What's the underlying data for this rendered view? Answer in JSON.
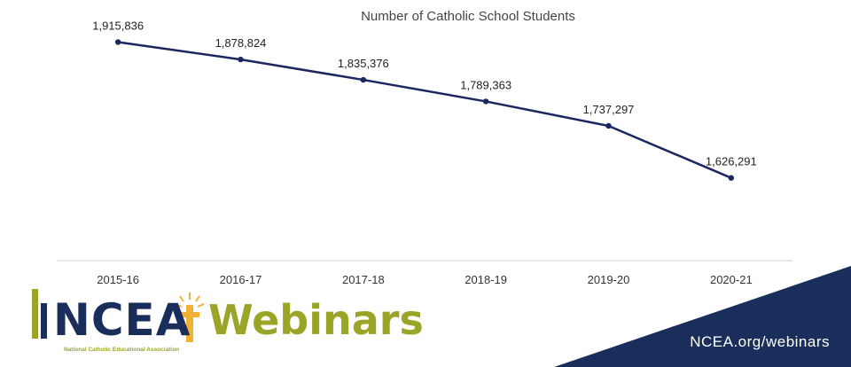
{
  "chart_data": {
    "type": "line",
    "title": "Number of Catholic School Students",
    "categories": [
      "2015-16",
      "2016-17",
      "2017-18",
      "2018-19",
      "2019-20",
      "2020-21"
    ],
    "series": [
      {
        "values": [
          1915836,
          1878824,
          1835376,
          1789363,
          1737297,
          1626291
        ],
        "labels": [
          "1,915,836",
          "1,878,824",
          "1,835,376",
          "1,789,363",
          "1,737,297",
          "1,626,291"
        ]
      }
    ],
    "xlabel": "",
    "ylabel": "",
    "ylim": [
      1450000,
      1930000
    ],
    "grid": false,
    "line_color": "#1a2760"
  },
  "branding": {
    "ncea": "NCEA",
    "webinars": "Webinars",
    "org_name": "National Catholic Educational Association",
    "url": "NCEA.org/webinars",
    "navy": "#1a2e5c",
    "olive": "#9aa527",
    "gold": "#f2b134"
  }
}
